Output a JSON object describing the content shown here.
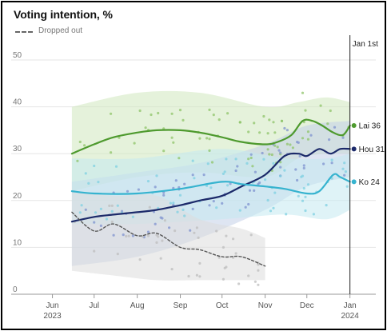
{
  "chart_data": {
    "type": "line",
    "title": "Voting intention, %",
    "legend": {
      "dropped_out_label": "Dropped out",
      "placement": "top-left"
    },
    "annotation": {
      "label": "Jan 1st",
      "x": "2024-01-01"
    },
    "ylim": [
      0,
      50
    ],
    "yticks": [
      0,
      10,
      20,
      30,
      40,
      50
    ],
    "xlim": [
      "2023-05-15",
      "2024-01-15"
    ],
    "xticks": [
      {
        "date": "2023-06-01",
        "label": "Jun",
        "year": "2023"
      },
      {
        "date": "2023-07-01",
        "label": "Jul",
        "year": ""
      },
      {
        "date": "2023-08-01",
        "label": "Aug",
        "year": ""
      },
      {
        "date": "2023-09-01",
        "label": "Sep",
        "year": ""
      },
      {
        "date": "2023-10-01",
        "label": "Oct",
        "year": ""
      },
      {
        "date": "2023-11-01",
        "label": "Nov",
        "year": ""
      },
      {
        "date": "2023-12-01",
        "label": "Dec",
        "year": ""
      },
      {
        "date": "2024-01-01",
        "label": "Jan",
        "year": "2024"
      }
    ],
    "grid": true,
    "series": [
      {
        "name": "Lai",
        "end_label": "Lai 36",
        "end_value": 36,
        "color": "#4e9a2e",
        "band_color": "#cfe7bd",
        "dot_color": "#8fc46a",
        "dashed": false,
        "points": [
          [
            "2023-06-15",
            30
          ],
          [
            "2023-07-01",
            32
          ],
          [
            "2023-07-15",
            33.5
          ],
          [
            "2023-08-01",
            34.5
          ],
          [
            "2023-08-15",
            35
          ],
          [
            "2023-09-01",
            35
          ],
          [
            "2023-09-15",
            34.5
          ],
          [
            "2023-10-01",
            33.5
          ],
          [
            "2023-10-15",
            32.5
          ],
          [
            "2023-11-01",
            32
          ],
          [
            "2023-11-10",
            32.5
          ],
          [
            "2023-11-20",
            34
          ],
          [
            "2023-11-28",
            37
          ],
          [
            "2023-12-05",
            37
          ],
          [
            "2023-12-12",
            36
          ],
          [
            "2023-12-20",
            34.5
          ],
          [
            "2023-12-27",
            34
          ],
          [
            "2024-01-01",
            36
          ]
        ],
        "band": [
          [
            "2023-06-15",
            22,
            40
          ],
          [
            "2023-08-01",
            25,
            43
          ],
          [
            "2023-09-15",
            26,
            43
          ],
          [
            "2023-11-01",
            25,
            40
          ],
          [
            "2023-11-25",
            29,
            41
          ],
          [
            "2023-12-15",
            30,
            42
          ],
          [
            "2024-01-01",
            30,
            41
          ]
        ]
      },
      {
        "name": "Hou",
        "end_label": "Hou 31",
        "end_value": 31,
        "color": "#1c2a6a",
        "band_color": "#c3cfe8",
        "dot_color": "#7f93cf",
        "dashed": false,
        "points": [
          [
            "2023-06-15",
            15.5
          ],
          [
            "2023-07-01",
            16.5
          ],
          [
            "2023-07-15",
            17
          ],
          [
            "2023-08-01",
            17.5
          ],
          [
            "2023-08-15",
            18
          ],
          [
            "2023-09-01",
            19
          ],
          [
            "2023-09-15",
            20
          ],
          [
            "2023-10-01",
            21
          ],
          [
            "2023-10-15",
            23
          ],
          [
            "2023-11-01",
            25.5
          ],
          [
            "2023-11-15",
            29.5
          ],
          [
            "2023-11-25",
            30
          ],
          [
            "2023-12-01",
            29.5
          ],
          [
            "2023-12-10",
            31
          ],
          [
            "2023-12-18",
            30
          ],
          [
            "2023-12-25",
            31
          ],
          [
            "2024-01-01",
            31
          ]
        ],
        "band": [
          [
            "2023-06-15",
            6,
            24
          ],
          [
            "2023-08-01",
            8,
            26
          ],
          [
            "2023-09-15",
            12,
            28
          ],
          [
            "2023-11-01",
            18,
            32
          ],
          [
            "2023-12-01",
            23,
            36
          ],
          [
            "2024-01-01",
            25,
            37
          ]
        ]
      },
      {
        "name": "Ko",
        "end_label": "Ko 24",
        "end_value": 24,
        "color": "#36b3cf",
        "band_color": "#c5e9f1",
        "dot_color": "#7fd0e2",
        "dashed": false,
        "points": [
          [
            "2023-06-15",
            22
          ],
          [
            "2023-07-01",
            21.5
          ],
          [
            "2023-08-01",
            21.5
          ],
          [
            "2023-09-01",
            22.5
          ],
          [
            "2023-10-01",
            24
          ],
          [
            "2023-10-15",
            23.5
          ],
          [
            "2023-11-01",
            23
          ],
          [
            "2023-11-15",
            22.5
          ],
          [
            "2023-12-01",
            21.5
          ],
          [
            "2023-12-10",
            22
          ],
          [
            "2023-12-20",
            25.5
          ],
          [
            "2023-12-25",
            25
          ],
          [
            "2024-01-01",
            24
          ]
        ],
        "band": [
          [
            "2023-06-15",
            15,
            29
          ],
          [
            "2023-08-01",
            15,
            29
          ],
          [
            "2023-10-01",
            16,
            31
          ],
          [
            "2023-11-15",
            17,
            29
          ],
          [
            "2023-12-15",
            16,
            29
          ],
          [
            "2024-01-01",
            18,
            30
          ]
        ]
      },
      {
        "name": "",
        "end_label": "",
        "color": "#555555",
        "band_color": "#dcdcdc",
        "dot_color": "#bdbdbd",
        "dashed": true,
        "points": [
          [
            "2023-06-15",
            17.5
          ],
          [
            "2023-07-01",
            13.5
          ],
          [
            "2023-07-15",
            15
          ],
          [
            "2023-08-01",
            12.5
          ],
          [
            "2023-08-15",
            13
          ],
          [
            "2023-09-01",
            10
          ],
          [
            "2023-09-15",
            9.5
          ],
          [
            "2023-10-01",
            8
          ],
          [
            "2023-10-15",
            8
          ],
          [
            "2023-11-01",
            6
          ]
        ],
        "band": [
          [
            "2023-06-15",
            5,
            22
          ],
          [
            "2023-07-15",
            4,
            21
          ],
          [
            "2023-08-15",
            3,
            21
          ],
          [
            "2023-09-15",
            3,
            16
          ],
          [
            "2023-10-15",
            3,
            14
          ],
          [
            "2023-11-01",
            3,
            12
          ]
        ]
      }
    ]
  }
}
